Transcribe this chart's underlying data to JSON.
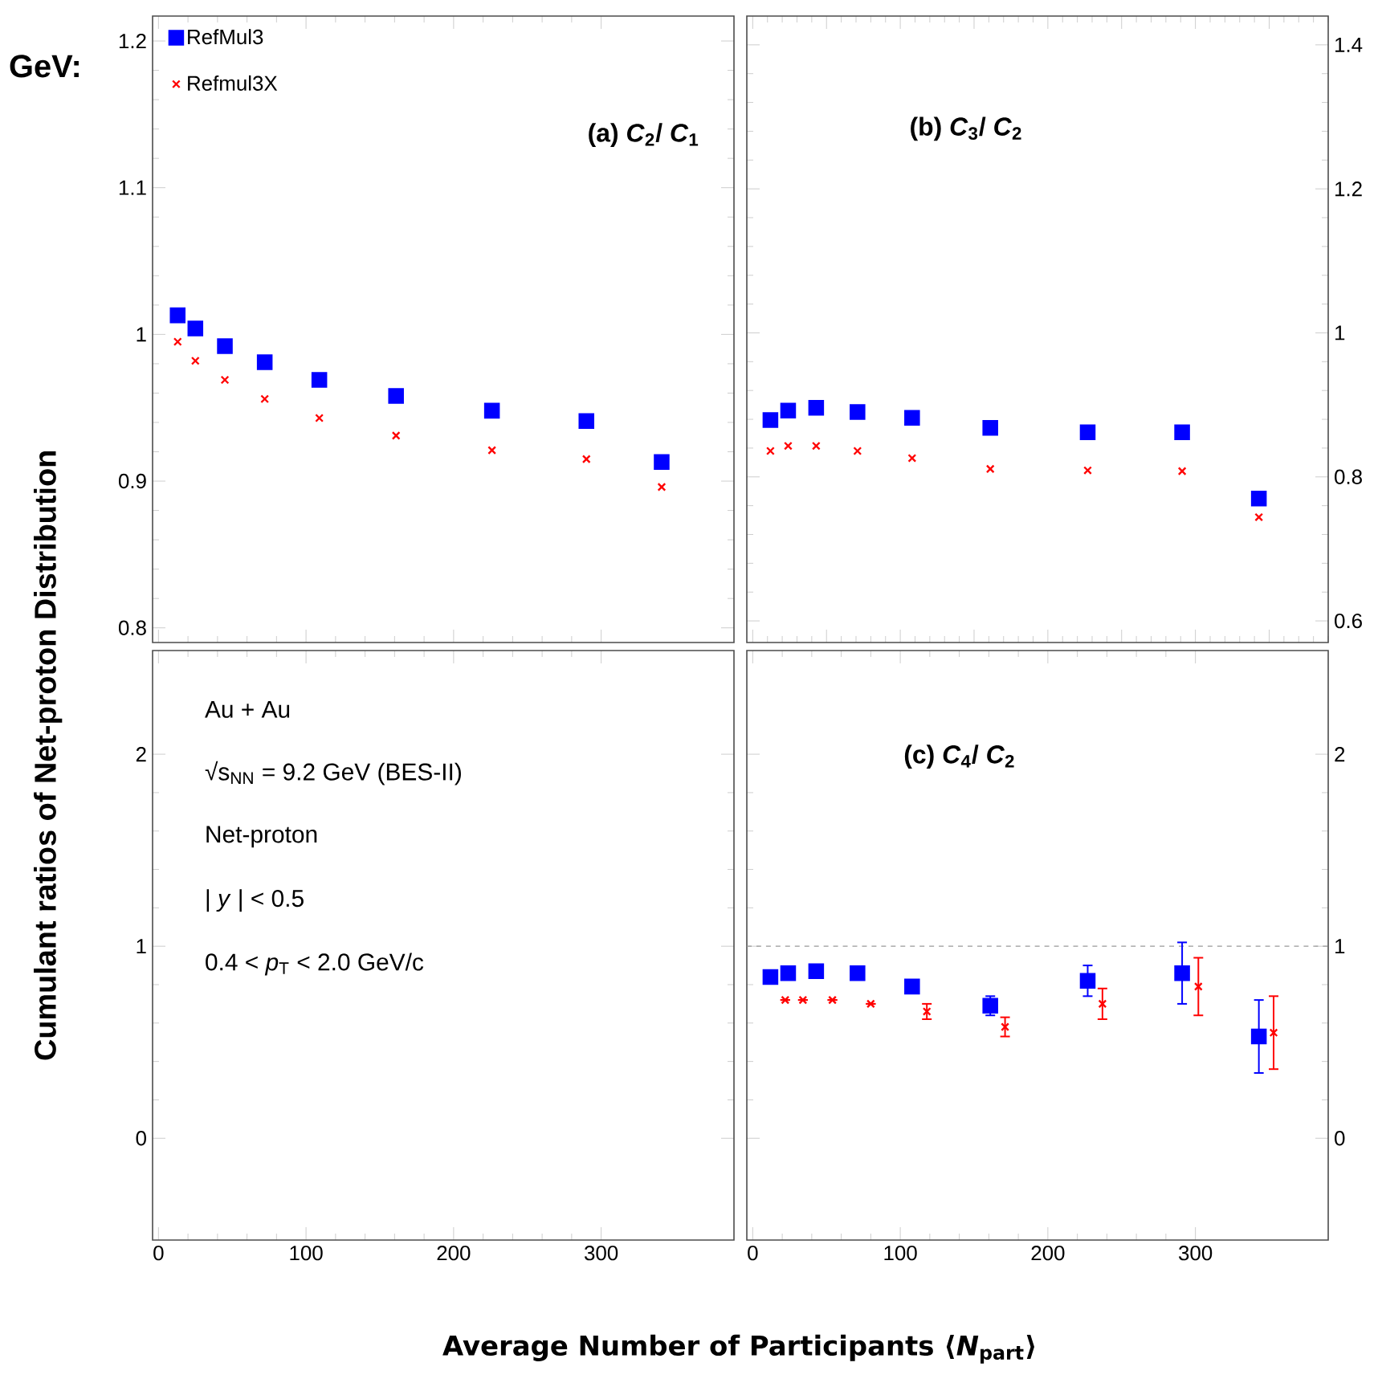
{
  "chart_data": [
    {
      "type": "scatter",
      "title": "(a) *C*$_{2}$/ *C*$_{1}$",
      "ylabel": "Cumulant ratios of Net-proton Distribution",
      "annotations": [
        "GeV:"
      ],
      "xlim": [
        -4,
        390
      ],
      "xticks": [
        0,
        100,
        200,
        300
      ],
      "ylim": [
        0.79,
        1.217
      ],
      "yticks": [
        0.8,
        0.9,
        1,
        1.1,
        1.2
      ],
      "tick_labels": "y",
      "legend": "top left",
      "series": [
        {
          "name": "RefMul3",
          "color": "#0000ff",
          "marker": "square",
          "x": [
            13,
            25,
            45,
            72,
            109,
            161,
            226,
            290,
            341
          ],
          "values": [
            1.013,
            1.004,
            0.992,
            0.981,
            0.969,
            0.958,
            0.948,
            0.941,
            0.913
          ]
        },
        {
          "name": "Refmul3X",
          "color": "#ff0000",
          "marker": "cross",
          "x": [
            13,
            25,
            45,
            72,
            109,
            161,
            226,
            290,
            341
          ],
          "values": [
            0.995,
            0.982,
            0.969,
            0.956,
            0.943,
            0.931,
            0.921,
            0.915,
            0.896
          ]
        }
      ]
    },
    {
      "type": "scatter",
      "title": "(b) *C*$_{3}$/ *C*$_{2}$",
      "xlim": [
        -4,
        390
      ],
      "ylim": [
        0.57,
        1.44
      ],
      "yticks": [
        0.6,
        0.8,
        1,
        1.2,
        1.4
      ],
      "tick_labels": "y",
      "series": [
        {
          "color": "#0000ff",
          "marker": "square",
          "x": [
            12,
            24,
            43,
            71,
            108,
            161,
            227,
            291,
            343
          ],
          "values": [
            0.879,
            0.892,
            0.896,
            0.89,
            0.882,
            0.868,
            0.862,
            0.862,
            0.77
          ]
        },
        {
          "color": "#ff0000",
          "marker": "cross",
          "x": [
            12,
            24,
            43,
            71,
            108,
            161,
            227,
            291,
            343
          ],
          "values": [
            0.836,
            0.843,
            0.843,
            0.836,
            0.826,
            0.811,
            0.809,
            0.808,
            0.744
          ]
        }
      ]
    },
    {
      "type": "scatter",
      "xlabel": "Average Number of Participants ⟨*N*$_{part}$⟩",
      "xlim": [
        -4,
        390
      ],
      "xticks": [
        0,
        100,
        200,
        300
      ],
      "ylim": [
        -0.53,
        2.54
      ],
      "yticks": [
        0,
        1,
        2
      ],
      "annotations": [
        "Au + Au",
        "√s$_{NN}$ = 9.2 GeV (BES-II)",
        "Net-proton",
        "| *y* | < 0.5",
        "0.4 < *p*$_{T}$ < 2.0 GeV/c"
      ]
    },
    {
      "type": "scatter",
      "title": "(c) *C*$_{4}$/ *C*$_{2}$",
      "xlim": [
        -4,
        390
      ],
      "xticks": [
        0,
        100,
        200,
        300
      ],
      "ylim": [
        -0.53,
        2.54
      ],
      "yticks": [
        0,
        1,
        2
      ],
      "ref_lines": [
        {
          "axis": "y",
          "value": 1,
          "color": "#999999",
          "line_style": "dashed"
        }
      ],
      "series": [
        {
          "color": "#0000ff",
          "marker": "square",
          "x": [
            12,
            24,
            43,
            71,
            108,
            161,
            227,
            291,
            343
          ],
          "values": [
            0.84,
            0.86,
            0.87,
            0.86,
            0.79,
            0.69,
            0.82,
            0.86,
            0.53
          ],
          "errors": [
            null,
            null,
            null,
            null,
            null,
            0.05,
            0.08,
            0.16,
            0.19
          ]
        },
        {
          "color": "#ff0000",
          "marker": "cross",
          "x": [
            22,
            34,
            54,
            80,
            118,
            171,
            237,
            302,
            353
          ],
          "values": [
            0.72,
            0.72,
            0.72,
            0.7,
            0.66,
            0.58,
            0.7,
            0.79,
            0.55
          ],
          "errors": [
            null,
            null,
            null,
            null,
            0.04,
            0.05,
            0.08,
            0.15,
            0.19
          ]
        }
      ]
    }
  ]
}
